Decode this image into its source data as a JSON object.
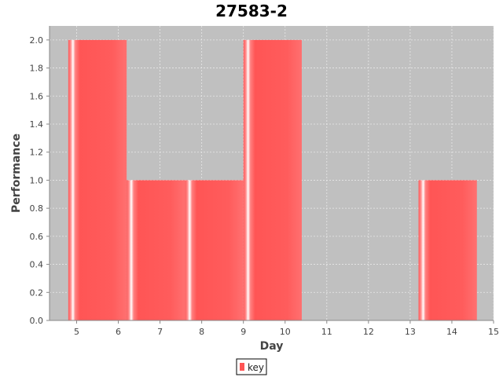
{
  "chart_data": {
    "type": "bar",
    "title": "27583-2",
    "xlabel": "Day",
    "ylabel": "Performance",
    "xlim": [
      4.35,
      15.0
    ],
    "ylim": [
      0.0,
      2.1
    ],
    "xticks": [
      5,
      6,
      7,
      8,
      9,
      10,
      11,
      12,
      13,
      14,
      15
    ],
    "yticks": [
      0.0,
      0.2,
      0.4,
      0.6,
      0.8,
      1.0,
      1.2,
      1.4,
      1.6,
      1.8,
      2.0
    ],
    "bin_width": 1.4,
    "series": [
      {
        "name": "key",
        "bars": [
          {
            "x_start": 4.8,
            "x_end": 6.2,
            "value": 2
          },
          {
            "x_start": 6.2,
            "x_end": 7.6,
            "value": 1
          },
          {
            "x_start": 7.6,
            "x_end": 9.0,
            "value": 1
          },
          {
            "x_start": 9.0,
            "x_end": 10.4,
            "value": 2
          },
          {
            "x_start": 13.2,
            "x_end": 14.6,
            "value": 1
          }
        ]
      }
    ],
    "grid": true,
    "legend": "bottom-center",
    "colors": {
      "bar": "#ff5555",
      "plot_background": "#c0c0c0",
      "gridline": "#e8e8e8"
    }
  }
}
